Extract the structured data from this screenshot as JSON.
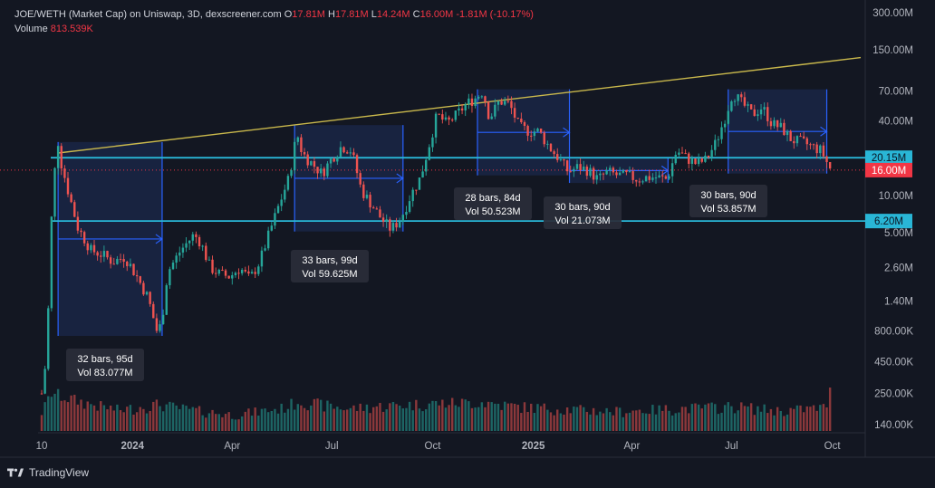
{
  "header": {
    "symbol": "JOE/WETH (Market Cap) on Uniswap, 3D, dexscreener.com",
    "o_label": "O",
    "o_value": "17.81M",
    "h_label": "H",
    "h_value": "17.81M",
    "l_label": "L",
    "l_value": "14.24M",
    "c_label": "C",
    "c_value": "16.00M",
    "change": "-1.81M (-10.17%)",
    "volume_label": "Volume",
    "volume_value": "813.539K"
  },
  "footer": {
    "brand": "TradingView"
  },
  "colors": {
    "background": "#131722",
    "up": "#26a69a",
    "down": "#ef5350",
    "grid": "#1e2230",
    "axis_text": "#b2b5be",
    "trendline": "#c9b84c",
    "hline": "#29b6d6",
    "range_fill": "#1c2a52",
    "range_line": "#2962ff",
    "price_tag_red": "#f23645",
    "price_tag_blue": "#29b6d6"
  },
  "chart_data": {
    "type": "candlestick",
    "y_scale": "log",
    "grid": false,
    "x_ticks": [
      "10",
      "2024",
      "Apr",
      "Jul",
      "Oct",
      "2025",
      "Apr",
      "Jul",
      "Oct"
    ],
    "y_ticks": [
      "300.00M",
      "150.00M",
      "70.00M",
      "40.00M",
      "10.00M",
      "5.00M",
      "2.60M",
      "1.40M",
      "800.00K",
      "450.00K",
      "250.00K",
      "140.00K"
    ],
    "price_tags": [
      {
        "label": "20.15M",
        "value": 20.15,
        "color": "blue"
      },
      {
        "label": "16.00M",
        "value": 16.0,
        "color": "red"
      },
      {
        "label": "6.20M",
        "value": 6.2,
        "color": "blue"
      }
    ],
    "horizontal_lines": [
      20.15,
      6.2
    ],
    "current_price": 16.0,
    "trendline": {
      "start": [
        "2023-10-25",
        22
      ],
      "end": [
        "2025-10-27",
        130
      ]
    },
    "ranges": [
      {
        "start": "2023-10-25",
        "end": "2024-01-28",
        "low": 0.73,
        "high": 27,
        "label": "32 bars, 95d",
        "vol": "Vol 83.077M"
      },
      {
        "start": "2024-05-28",
        "end": "2024-09-04",
        "low": 5.1,
        "high": 37,
        "label": "33 bars, 99d",
        "vol": "Vol 59.625M"
      },
      {
        "start": "2024-11-11",
        "end": "2025-02-03",
        "low": 14.5,
        "high": 72,
        "label": "28 bars, 84d",
        "vol": "Vol 50.523M"
      },
      {
        "start": "2025-02-03",
        "end": "2025-05-04",
        "low": 12.6,
        "high": 20,
        "label": "30 bars, 90d",
        "vol": "Vol 21.073M"
      },
      {
        "start": "2025-06-28",
        "end": "2025-09-26",
        "low": 15,
        "high": 72,
        "label": "30 bars, 90d",
        "vol": "Vol 53.857M"
      }
    ],
    "price_anchors": [
      [
        "2023-10-10",
        0.25
      ],
      [
        "2023-10-13",
        0.4
      ],
      [
        "2023-10-16",
        1.2
      ],
      [
        "2023-10-19",
        6.5
      ],
      [
        "2023-10-22",
        16
      ],
      [
        "2023-10-25",
        27
      ],
      [
        "2023-10-28",
        18
      ],
      [
        "2023-11-03",
        11
      ],
      [
        "2023-11-12",
        5.5
      ],
      [
        "2023-11-24",
        3.6
      ],
      [
        "2023-12-05",
        3.3
      ],
      [
        "2023-12-14",
        2.9
      ],
      [
        "2023-12-25",
        3.2
      ],
      [
        "2024-01-05",
        2.2
      ],
      [
        "2024-01-15",
        1.5
      ],
      [
        "2024-01-24",
        0.75
      ],
      [
        "2024-01-28",
        1.0
      ],
      [
        "2024-02-02",
        2.4
      ],
      [
        "2024-02-14",
        3.6
      ],
      [
        "2024-02-26",
        4.8
      ],
      [
        "2024-03-03",
        4.2
      ],
      [
        "2024-03-12",
        2.6
      ],
      [
        "2024-03-21",
        2.3
      ],
      [
        "2024-03-30",
        2.2
      ],
      [
        "2024-04-08",
        2.6
      ],
      [
        "2024-04-17",
        2.1
      ],
      [
        "2024-04-26",
        2.9
      ],
      [
        "2024-05-05",
        5.0
      ],
      [
        "2024-05-14",
        8.5
      ],
      [
        "2024-05-23",
        14
      ],
      [
        "2024-05-30",
        32
      ],
      [
        "2024-06-04",
        22
      ],
      [
        "2024-06-13",
        18
      ],
      [
        "2024-06-22",
        15
      ],
      [
        "2024-07-01",
        20
      ],
      [
        "2024-07-10",
        25
      ],
      [
        "2024-07-19",
        23
      ],
      [
        "2024-07-28",
        11
      ],
      [
        "2024-08-06",
        8.5
      ],
      [
        "2024-08-15",
        6.5
      ],
      [
        "2024-08-24",
        5.3
      ],
      [
        "2024-09-02",
        6.5
      ],
      [
        "2024-09-11",
        10
      ],
      [
        "2024-09-20",
        14
      ],
      [
        "2024-09-29",
        28
      ],
      [
        "2024-10-05",
        45
      ],
      [
        "2024-10-14",
        38
      ],
      [
        "2024-10-23",
        45
      ],
      [
        "2024-11-01",
        55
      ],
      [
        "2024-11-10",
        62
      ],
      [
        "2024-11-16",
        70
      ],
      [
        "2024-11-22",
        42
      ],
      [
        "2024-12-01",
        58
      ],
      [
        "2024-12-10",
        55
      ],
      [
        "2024-12-19",
        36
      ],
      [
        "2024-12-28",
        33
      ],
      [
        "2025-01-06",
        33
      ],
      [
        "2025-01-15",
        25
      ],
      [
        "2025-01-24",
        20
      ],
      [
        "2025-02-02",
        15.5
      ],
      [
        "2025-02-11",
        17
      ],
      [
        "2025-02-20",
        16
      ],
      [
        "2025-03-01",
        13.5
      ],
      [
        "2025-03-10",
        15.5
      ],
      [
        "2025-03-19",
        14.5
      ],
      [
        "2025-03-28",
        14.5
      ],
      [
        "2025-04-06",
        13.5
      ],
      [
        "2025-04-15",
        14
      ],
      [
        "2025-04-24",
        14
      ],
      [
        "2025-05-03",
        13.5
      ],
      [
        "2025-05-12",
        23
      ],
      [
        "2025-05-21",
        20
      ],
      [
        "2025-05-30",
        18
      ],
      [
        "2025-06-08",
        19.5
      ],
      [
        "2025-06-17",
        27
      ],
      [
        "2025-06-26",
        45
      ],
      [
        "2025-07-02",
        68
      ],
      [
        "2025-07-11",
        55
      ],
      [
        "2025-07-20",
        45
      ],
      [
        "2025-07-29",
        52
      ],
      [
        "2025-08-07",
        38
      ],
      [
        "2025-08-16",
        35
      ],
      [
        "2025-08-25",
        28
      ],
      [
        "2025-09-03",
        27
      ],
      [
        "2025-09-12",
        25
      ],
      [
        "2025-09-21",
        23
      ],
      [
        "2025-09-27",
        17.8
      ],
      [
        "2025-09-30",
        16
      ]
    ],
    "volume_anchors": [
      [
        "2023-10-10",
        0.15
      ],
      [
        "2023-10-19",
        0.6
      ],
      [
        "2023-10-31",
        0.45
      ],
      [
        "2023-11-20",
        0.3
      ],
      [
        "2023-12-20",
        0.18
      ],
      [
        "2024-01-25",
        0.28
      ],
      [
        "2024-02-15",
        0.2
      ],
      [
        "2024-04-01",
        0.12
      ],
      [
        "2024-05-15",
        0.2
      ],
      [
        "2024-06-01",
        0.35
      ],
      [
        "2024-07-15",
        0.2
      ],
      [
        "2024-08-20",
        0.25
      ],
      [
        "2024-10-05",
        0.3
      ],
      [
        "2024-11-15",
        0.32
      ],
      [
        "2024-12-15",
        0.24
      ],
      [
        "2025-01-25",
        0.2
      ],
      [
        "2025-03-15",
        0.16
      ],
      [
        "2025-05-10",
        0.2
      ],
      [
        "2025-07-05",
        0.24
      ],
      [
        "2025-08-15",
        0.17
      ],
      [
        "2025-09-25",
        0.22
      ],
      [
        "2025-09-30",
        0.813
      ]
    ]
  }
}
